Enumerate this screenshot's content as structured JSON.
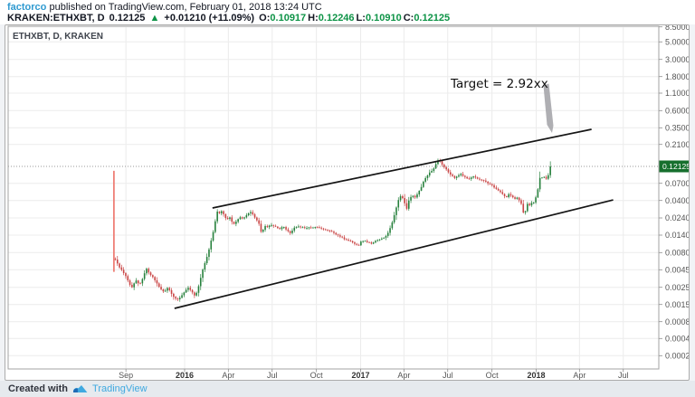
{
  "header": {
    "author": "factorco",
    "published_text": "published on TradingView.com, February 01, 2018 13:24 UTC",
    "symbol": "KRAKEN:ETHXBT, D",
    "last_price": "0.12125",
    "direction_arrow": "▲",
    "change_text": "+0.01210 (+11.09%)",
    "ohlc": [
      {
        "label": "O:",
        "value": "0.10917"
      },
      {
        "label": "H:",
        "value": "0.12246"
      },
      {
        "label": "L:",
        "value": "0.10910"
      },
      {
        "label": "C:",
        "value": "0.12125"
      }
    ]
  },
  "chart": {
    "legend": "ETHXBT, D, KRAKEN"
  },
  "chart_data": {
    "type": "candlestick",
    "symbol": "KRAKEN:ETHXBT",
    "timeframe": "D",
    "scale": "log",
    "grid": true,
    "current_price": 0.12125,
    "current_price_label": "0.12125",
    "annotation": {
      "text": "Target = 2.92xx"
    },
    "y_axis": {
      "side": "right",
      "decimals": 5,
      "ticks": [
        8.5,
        5.0,
        3.0,
        1.8,
        1.1,
        0.6,
        0.35,
        0.21,
        0.07,
        0.04,
        0.024,
        0.014,
        0.008,
        0.0045,
        0.0025,
        0.0015,
        0.0008,
        0.00045,
        0.00023
      ]
    },
    "x_axis": {
      "labels": [
        {
          "text": "Sep",
          "date": "2015-09-01",
          "bold": false
        },
        {
          "text": "2016",
          "date": "2016-01-01",
          "bold": true
        },
        {
          "text": "Apr",
          "date": "2016-04-01",
          "bold": false
        },
        {
          "text": "Jul",
          "date": "2016-07-01",
          "bold": false
        },
        {
          "text": "Oct",
          "date": "2016-10-01",
          "bold": false
        },
        {
          "text": "2017",
          "date": "2017-01-01",
          "bold": true
        },
        {
          "text": "Apr",
          "date": "2017-04-01",
          "bold": false
        },
        {
          "text": "Jul",
          "date": "2017-07-01",
          "bold": false
        },
        {
          "text": "Oct",
          "date": "2017-10-01",
          "bold": false
        },
        {
          "text": "2018",
          "date": "2018-01-01",
          "bold": true
        },
        {
          "text": "Apr",
          "date": "2018-04-01",
          "bold": false
        },
        {
          "text": "Jul",
          "date": "2018-07-01",
          "bold": false
        }
      ]
    },
    "first_bar": {
      "date": "2015-08-07",
      "high": 0.105,
      "low": 0.004
    },
    "trendlines": [
      {
        "name": "channel-top",
        "p1": {
          "date": "2016-02-28",
          "price": 0.0316
        },
        "p2": {
          "date": "2018-04-26",
          "price": 0.402
        }
      },
      {
        "name": "channel-bottom",
        "p1": {
          "date": "2015-12-11",
          "price": 0.00123
        },
        "p2": {
          "date": "2018-06-10",
          "price": 0.041
        }
      }
    ],
    "series": [
      [
        "2015-08-10",
        0.006
      ],
      [
        "2015-08-18",
        0.0047
      ],
      [
        "2015-09-01",
        0.0035
      ],
      [
        "2015-09-08",
        0.0027
      ],
      [
        "2015-09-14",
        0.0024
      ],
      [
        "2015-09-21",
        0.0031
      ],
      [
        "2015-09-29",
        0.0026
      ],
      [
        "2015-10-06",
        0.0033
      ],
      [
        "2015-10-13",
        0.0045
      ],
      [
        "2015-10-20",
        0.0038
      ],
      [
        "2015-10-28",
        0.0033
      ],
      [
        "2015-11-04",
        0.0028
      ],
      [
        "2015-11-12",
        0.0023
      ],
      [
        "2015-11-19",
        0.0021
      ],
      [
        "2015-11-27",
        0.0024
      ],
      [
        "2015-12-04",
        0.002
      ],
      [
        "2015-12-12",
        0.0017
      ],
      [
        "2015-12-19",
        0.00165
      ],
      [
        "2015-12-27",
        0.0019
      ],
      [
        "2016-01-01",
        0.0021
      ],
      [
        "2016-01-08",
        0.0024
      ],
      [
        "2016-01-16",
        0.0021
      ],
      [
        "2016-01-23",
        0.0018
      ],
      [
        "2016-01-31",
        0.0026
      ],
      [
        "2016-02-07",
        0.0042
      ],
      [
        "2016-02-15",
        0.006
      ],
      [
        "2016-02-22",
        0.009
      ],
      [
        "2016-03-01",
        0.015
      ],
      [
        "2016-03-06",
        0.023
      ],
      [
        "2016-03-10",
        0.03
      ],
      [
        "2016-03-14",
        0.026
      ],
      [
        "2016-03-17",
        0.029
      ],
      [
        "2016-03-23",
        0.025
      ],
      [
        "2016-03-29",
        0.0215
      ],
      [
        "2016-04-03",
        0.024
      ],
      [
        "2016-04-09",
        0.02
      ],
      [
        "2016-04-14",
        0.0185
      ],
      [
        "2016-04-20",
        0.022
      ],
      [
        "2016-04-26",
        0.0235
      ],
      [
        "2016-05-01",
        0.0225
      ],
      [
        "2016-05-07",
        0.0245
      ],
      [
        "2016-05-12",
        0.0265
      ],
      [
        "2016-05-18",
        0.028
      ],
      [
        "2016-05-24",
        0.024
      ],
      [
        "2016-05-29",
        0.0215
      ],
      [
        "2016-06-04",
        0.019
      ],
      [
        "2016-06-09",
        0.0135
      ],
      [
        "2016-06-15",
        0.018
      ],
      [
        "2016-06-20",
        0.017
      ],
      [
        "2016-07-01",
        0.0185
      ],
      [
        "2016-07-09",
        0.017
      ],
      [
        "2016-07-16",
        0.016
      ],
      [
        "2016-07-24",
        0.0175
      ],
      [
        "2016-07-31",
        0.0155
      ],
      [
        "2016-08-08",
        0.014
      ],
      [
        "2016-08-15",
        0.0165
      ],
      [
        "2016-08-23",
        0.0175
      ],
      [
        "2016-08-30",
        0.017
      ],
      [
        "2016-09-07",
        0.0165
      ],
      [
        "2016-09-14",
        0.017
      ],
      [
        "2016-09-22",
        0.0165
      ],
      [
        "2016-10-01",
        0.017
      ],
      [
        "2016-10-08",
        0.0165
      ],
      [
        "2016-10-15",
        0.016
      ],
      [
        "2016-10-23",
        0.0155
      ],
      [
        "2016-10-30",
        0.015
      ],
      [
        "2016-11-07",
        0.014
      ],
      [
        "2016-11-14",
        0.013
      ],
      [
        "2016-11-22",
        0.0125
      ],
      [
        "2016-11-29",
        0.0115
      ],
      [
        "2016-12-07",
        0.011
      ],
      [
        "2016-12-14",
        0.0105
      ],
      [
        "2016-12-22",
        0.0098
      ],
      [
        "2016-12-28",
        0.0093
      ],
      [
        "2017-01-01",
        0.0105
      ],
      [
        "2017-01-08",
        0.011
      ],
      [
        "2017-01-16",
        0.0105
      ],
      [
        "2017-01-23",
        0.01
      ],
      [
        "2017-01-31",
        0.0108
      ],
      [
        "2017-02-07",
        0.0112
      ],
      [
        "2017-02-15",
        0.0118
      ],
      [
        "2017-02-22",
        0.0125
      ],
      [
        "2017-03-01",
        0.015
      ],
      [
        "2017-03-09",
        0.021
      ],
      [
        "2017-03-16",
        0.032
      ],
      [
        "2017-03-22",
        0.044
      ],
      [
        "2017-03-27",
        0.047
      ],
      [
        "2017-04-01",
        0.039
      ],
      [
        "2017-04-07",
        0.031
      ],
      [
        "2017-04-12",
        0.042
      ],
      [
        "2017-04-18",
        0.0475
      ],
      [
        "2017-04-24",
        0.044
      ],
      [
        "2017-04-29",
        0.05
      ],
      [
        "2017-05-05",
        0.058
      ],
      [
        "2017-05-10",
        0.07
      ],
      [
        "2017-05-16",
        0.084
      ],
      [
        "2017-05-22",
        0.095
      ],
      [
        "2017-05-27",
        0.102
      ],
      [
        "2017-06-02",
        0.114
      ],
      [
        "2017-06-07",
        0.135
      ],
      [
        "2017-06-13",
        0.153
      ],
      [
        "2017-06-18",
        0.133
      ],
      [
        "2017-06-24",
        0.118
      ],
      [
        "2017-06-30",
        0.108
      ],
      [
        "2017-07-05",
        0.095
      ],
      [
        "2017-07-11",
        0.088
      ],
      [
        "2017-07-16",
        0.083
      ],
      [
        "2017-07-22",
        0.09
      ],
      [
        "2017-07-28",
        0.095
      ],
      [
        "2017-08-02",
        0.089
      ],
      [
        "2017-08-08",
        0.084
      ],
      [
        "2017-08-13",
        0.08
      ],
      [
        "2017-08-19",
        0.085
      ],
      [
        "2017-08-25",
        0.088
      ],
      [
        "2017-08-30",
        0.083
      ],
      [
        "2017-09-05",
        0.08
      ],
      [
        "2017-09-10",
        0.078
      ],
      [
        "2017-09-16",
        0.075
      ],
      [
        "2017-09-22",
        0.071
      ],
      [
        "2017-09-27",
        0.068
      ],
      [
        "2017-10-03",
        0.064
      ],
      [
        "2017-10-08",
        0.06
      ],
      [
        "2017-10-14",
        0.056
      ],
      [
        "2017-10-20",
        0.052
      ],
      [
        "2017-10-25",
        0.048
      ],
      [
        "2017-10-31",
        0.044
      ],
      [
        "2017-11-05",
        0.05
      ],
      [
        "2017-11-11",
        0.046
      ],
      [
        "2017-11-17",
        0.042
      ],
      [
        "2017-11-22",
        0.044
      ],
      [
        "2017-11-28",
        0.04
      ],
      [
        "2017-12-03",
        0.033
      ],
      [
        "2017-12-07",
        0.023
      ],
      [
        "2017-12-11",
        0.032
      ],
      [
        "2017-12-14",
        0.036
      ],
      [
        "2017-12-18",
        0.034
      ],
      [
        "2017-12-22",
        0.038
      ],
      [
        "2017-12-26",
        0.036
      ],
      [
        "2017-12-29",
        0.042
      ],
      [
        "2018-01-02",
        0.047
      ],
      [
        "2018-01-05",
        0.06
      ],
      [
        "2018-01-09",
        0.085
      ],
      [
        "2018-01-10",
        0.096
      ],
      [
        "2018-01-14",
        0.082
      ],
      [
        "2018-01-18",
        0.088
      ],
      [
        "2018-01-22",
        0.08
      ],
      [
        "2018-01-26",
        0.09
      ],
      [
        "2018-01-29",
        0.105
      ],
      [
        "2018-02-01",
        0.12125
      ]
    ],
    "colors": {
      "up": "#26803c",
      "down": "#c94444",
      "spike": "#ef7f76",
      "trendline": "#151515",
      "grid": "#ececec",
      "border": "#a3a3a3",
      "axis_text": "#555555",
      "year_text": "#333333",
      "price_line": "#9a9a9a",
      "badge_bg": "#166f2d",
      "badge_text": "#ffffff"
    }
  },
  "footer": {
    "created_with": "Created with",
    "brand": "TradingView"
  }
}
